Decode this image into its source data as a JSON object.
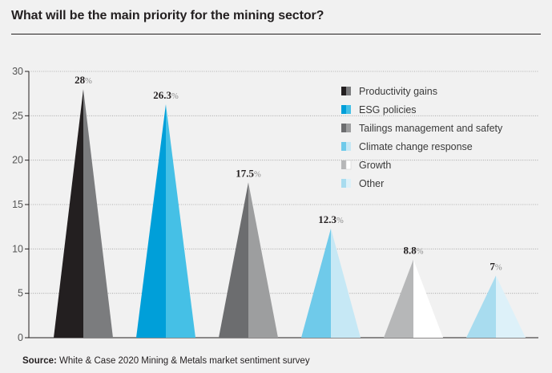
{
  "title": "What will be the main priority for the mining sector?",
  "source": {
    "label": "Source:",
    "text": "White & Case 2020 Mining & Metals market sentiment survey"
  },
  "chart_data": {
    "type": "bar",
    "bar_shape": "triangle",
    "categories": [
      "Productivity gains",
      "ESG policies",
      "Tailings management and safety",
      "Climate change response",
      "Growth",
      "Other"
    ],
    "values": [
      28,
      26.3,
      17.5,
      12.3,
      8.8,
      7
    ],
    "value_labels": [
      "28",
      "26.3",
      "17.5",
      "12.3",
      "8.8",
      "7"
    ],
    "value_suffix": "%",
    "ylim": [
      0,
      30
    ],
    "yticks": [
      0,
      5,
      10,
      15,
      20,
      25,
      30
    ],
    "grid": true,
    "legend_position": "top-right",
    "colors": [
      {
        "left": "#231f20",
        "right": "#7b7c7e"
      },
      {
        "left": "#009fd9",
        "right": "#45c0e6"
      },
      {
        "left": "#6c6d6f",
        "right": "#9d9e9f"
      },
      {
        "left": "#6fcaea",
        "right": "#c6e8f5"
      },
      {
        "left": "#b6b7b8",
        "right": "#ffffff"
      },
      {
        "left": "#a8dcef",
        "right": "#ddf1f9"
      }
    ]
  }
}
